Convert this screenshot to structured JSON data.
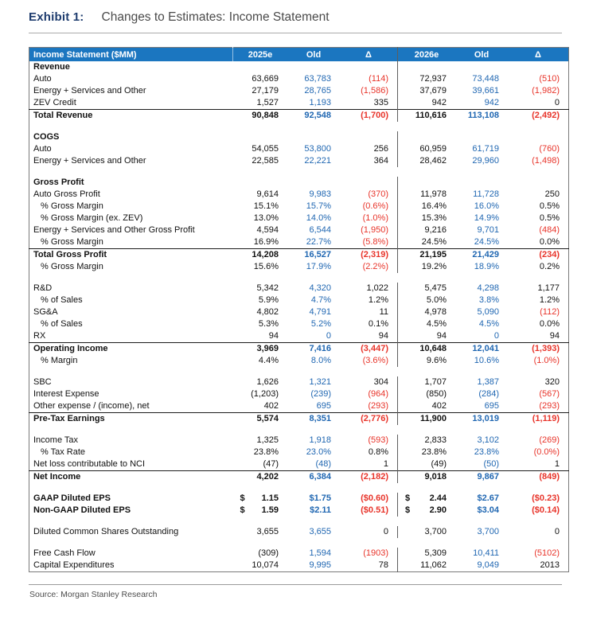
{
  "header": {
    "exhibit": "Exhibit 1:",
    "title": "Changes to Estimates: Income Statement"
  },
  "source": "Source: Morgan Stanley Research",
  "colors": {
    "header_bg": "#1b76c0",
    "old_text": "#2067b2",
    "negative": "#e8342a"
  },
  "table": {
    "columns": [
      "Income Statement ($MM)",
      "2025e",
      "Old",
      "Δ",
      "2026e",
      "Old",
      "Δ"
    ],
    "rows": [
      {
        "style": "section",
        "label": "Revenue",
        "cells": [
          "",
          "",
          "",
          "",
          "",
          ""
        ]
      },
      {
        "style": "item",
        "label": "Auto",
        "cells": [
          "63,669",
          "63,783",
          "(114)",
          "72,937",
          "73,448",
          "(510)"
        ]
      },
      {
        "style": "item",
        "label": "Energy + Services and Other",
        "cells": [
          "27,179",
          "28,765",
          "(1,586)",
          "37,679",
          "39,661",
          "(1,982)"
        ]
      },
      {
        "style": "item",
        "label": "ZEV Credit",
        "cells": [
          "1,527",
          "1,193",
          "335",
          "942",
          "942",
          "0"
        ]
      },
      {
        "style": "total",
        "label": "Total Revenue",
        "cells": [
          "90,848",
          "92,548",
          "(1,700)",
          "110,616",
          "113,108",
          "(2,492)"
        ]
      },
      {
        "style": "spacer",
        "label": "",
        "cells": []
      },
      {
        "style": "section",
        "label": "COGS",
        "cells": [
          "",
          "",
          "",
          "",
          "",
          ""
        ]
      },
      {
        "style": "item",
        "label": "Auto",
        "cells": [
          "54,055",
          "53,800",
          "256",
          "60,959",
          "61,719",
          "(760)"
        ]
      },
      {
        "style": "item",
        "label": "Energy + Services and Other",
        "cells": [
          "22,585",
          "22,221",
          "364",
          "28,462",
          "29,960",
          "(1,498)"
        ]
      },
      {
        "style": "spacer",
        "label": "",
        "cells": []
      },
      {
        "style": "section",
        "label": "Gross Profit",
        "cells": [
          "",
          "",
          "",
          "",
          "",
          ""
        ]
      },
      {
        "style": "item",
        "label": "Auto Gross Profit",
        "cells": [
          "9,614",
          "9,983",
          "(370)",
          "11,978",
          "11,728",
          "250"
        ]
      },
      {
        "style": "pct",
        "label": "% Gross Margin",
        "cells": [
          "15.1%",
          "15.7%",
          "(0.6%)",
          "16.4%",
          "16.0%",
          "0.5%"
        ]
      },
      {
        "style": "pct",
        "label": "% Gross Margin (ex. ZEV)",
        "cells": [
          "13.0%",
          "14.0%",
          "(1.0%)",
          "15.3%",
          "14.9%",
          "0.5%"
        ]
      },
      {
        "style": "item",
        "label": "Energy + Services and Other Gross Profit",
        "cells": [
          "4,594",
          "6,544",
          "(1,950)",
          "9,216",
          "9,701",
          "(484)"
        ]
      },
      {
        "style": "pct",
        "label": "% Gross Margin",
        "cells": [
          "16.9%",
          "22.7%",
          "(5.8%)",
          "24.5%",
          "24.5%",
          "0.0%"
        ]
      },
      {
        "style": "total",
        "label": "Total Gross Profit",
        "cells": [
          "14,208",
          "16,527",
          "(2,319)",
          "21,195",
          "21,429",
          "(234)"
        ]
      },
      {
        "style": "pct",
        "label": "% Gross Margin",
        "cells": [
          "15.6%",
          "17.9%",
          "(2.2%)",
          "19.2%",
          "18.9%",
          "0.2%"
        ]
      },
      {
        "style": "spacer",
        "label": "",
        "cells": []
      },
      {
        "style": "item",
        "label": "R&D",
        "cells": [
          "5,342",
          "4,320",
          "1,022",
          "5,475",
          "4,298",
          "1,177"
        ]
      },
      {
        "style": "pct",
        "label": "% of Sales",
        "cells": [
          "5.9%",
          "4.7%",
          "1.2%",
          "5.0%",
          "3.8%",
          "1.2%"
        ]
      },
      {
        "style": "item",
        "label": "SG&A",
        "cells": [
          "4,802",
          "4,791",
          "11",
          "4,978",
          "5,090",
          "(112)"
        ]
      },
      {
        "style": "pct",
        "label": "% of Sales",
        "cells": [
          "5.3%",
          "5.2%",
          "0.1%",
          "4.5%",
          "4.5%",
          "0.0%"
        ]
      },
      {
        "style": "item",
        "label": "RX",
        "cells": [
          "94",
          "0",
          "94",
          "94",
          "0",
          "94"
        ]
      },
      {
        "style": "total",
        "label": "Operating Income",
        "cells": [
          "3,969",
          "7,416",
          "(3,447)",
          "10,648",
          "12,041",
          "(1,393)"
        ]
      },
      {
        "style": "pct",
        "label": "% Margin",
        "cells": [
          "4.4%",
          "8.0%",
          "(3.6%)",
          "9.6%",
          "10.6%",
          "(1.0%)"
        ]
      },
      {
        "style": "spacer",
        "label": "",
        "cells": []
      },
      {
        "style": "item",
        "label": "SBC",
        "cells": [
          "1,626",
          "1,321",
          "304",
          "1,707",
          "1,387",
          "320"
        ]
      },
      {
        "style": "item",
        "label": "Interest Expense",
        "cells": [
          "(1,203)",
          "(239)",
          "(964)",
          "(850)",
          "(284)",
          "(567)"
        ]
      },
      {
        "style": "item",
        "label": "Other expense / (income), net",
        "cells": [
          "402",
          "695",
          "(293)",
          "402",
          "695",
          "(293)"
        ]
      },
      {
        "style": "total",
        "label": "Pre-Tax Earnings",
        "cells": [
          "5,574",
          "8,351",
          "(2,776)",
          "11,900",
          "13,019",
          "(1,119)"
        ]
      },
      {
        "style": "spacer",
        "label": "",
        "cells": []
      },
      {
        "style": "item",
        "label": "Income Tax",
        "cells": [
          "1,325",
          "1,918",
          "(593)",
          "2,833",
          "3,102",
          "(269)"
        ]
      },
      {
        "style": "pct",
        "label": "% Tax Rate",
        "cells": [
          "23.8%",
          "23.0%",
          "0.8%",
          "23.8%",
          "23.8%",
          "(0.0%)"
        ]
      },
      {
        "style": "item",
        "label": "Net loss contributable to NCI",
        "cells": [
          "(47)",
          "(48)",
          "1",
          "(49)",
          "(50)",
          "1"
        ]
      },
      {
        "style": "total",
        "label": "Net Income",
        "cells": [
          "4,202",
          "6,384",
          "(2,182)",
          "9,018",
          "9,867",
          "(849)"
        ]
      },
      {
        "style": "spacer",
        "label": "",
        "cells": []
      },
      {
        "style": "boldrow",
        "label": "GAAP Diluted EPS",
        "cells": [
          "$|1.15",
          "$1.75",
          "($0.60)",
          "$|2.44",
          "$2.67",
          "($0.23)"
        ]
      },
      {
        "style": "boldrow",
        "label": "Non-GAAP Diluted EPS",
        "cells": [
          "$|1.59",
          "$2.11",
          "($0.51)",
          "$|2.90",
          "$3.04",
          "($0.14)"
        ]
      },
      {
        "style": "spacer",
        "label": "",
        "cells": []
      },
      {
        "style": "item",
        "label": "Diluted Common Shares Outstanding",
        "cells": [
          "3,655",
          "3,655",
          "0",
          "3,700",
          "3,700",
          "0"
        ]
      },
      {
        "style": "spacer",
        "label": "",
        "cells": []
      },
      {
        "style": "item",
        "label": "Free Cash Flow",
        "cells": [
          "(309)",
          "1,594",
          "(1903)",
          "5,309",
          "10,411",
          "(5102)"
        ]
      },
      {
        "style": "item",
        "label": "Capital Expenditures",
        "cells": [
          "10,074",
          "9,995",
          "78",
          "11,062",
          "9,049",
          "2013"
        ]
      }
    ]
  }
}
